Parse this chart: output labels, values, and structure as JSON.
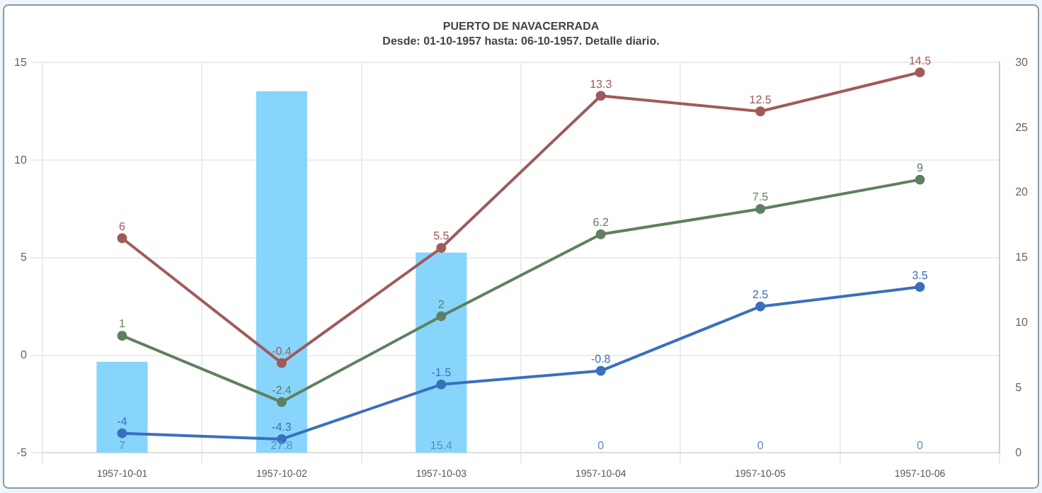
{
  "chart_data": {
    "type": "line",
    "title": "PUERTO DE NAVACERRADA",
    "subtitle": "Desde: 01-10-1957 hasta: 06-10-1957. Detalle diario.",
    "categories": [
      "1957-10-01",
      "1957-10-02",
      "1957-10-03",
      "1957-10-04",
      "1957-10-05",
      "1957-10-06"
    ],
    "series": [
      {
        "type": "bar",
        "axis": "y2",
        "color": "#87d5fa",
        "values": [
          7,
          27.8,
          15.4,
          0,
          0,
          0
        ]
      },
      {
        "color": "#a05a5a",
        "values": [
          6,
          -0.4,
          5.5,
          13.3,
          12.5,
          14.5
        ]
      },
      {
        "color": "#5f8060",
        "values": [
          1,
          -2.4,
          2,
          6.2,
          7.5,
          9
        ]
      },
      {
        "color": "#3a6fbf",
        "values": [
          -4,
          -4.3,
          -1.5,
          -0.8,
          2.5,
          3.5
        ]
      }
    ],
    "ylim": [
      -5,
      15
    ],
    "yticks": [
      -5,
      0,
      5,
      10,
      15
    ],
    "y2lim": [
      0,
      30
    ],
    "y2ticks": [
      0,
      5,
      10,
      15,
      20,
      25,
      30
    ],
    "grid": true,
    "legend": false,
    "marker": "circle",
    "line_style": "solid",
    "data_labels": true
  }
}
